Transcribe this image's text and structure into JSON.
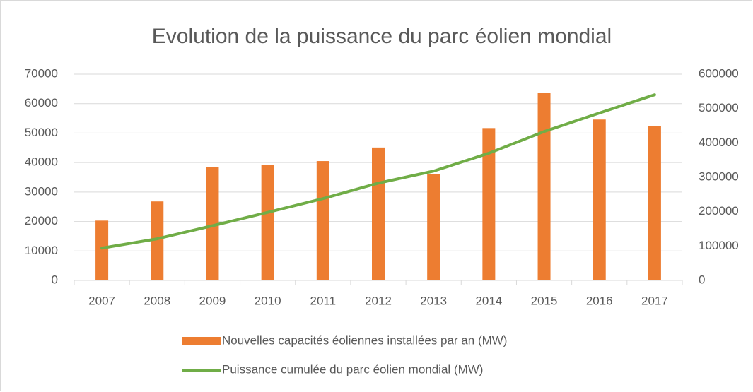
{
  "chart_data": {
    "type": "bar_line",
    "title": "Evolution de la puissance du parc éolien mondial",
    "categories": [
      "2007",
      "2008",
      "2009",
      "2010",
      "2011",
      "2012",
      "2013",
      "2014",
      "2015",
      "2016",
      "2017"
    ],
    "series": [
      {
        "name": "Nouvelles capacités éoliennes installées par an (MW)",
        "type": "bar",
        "color": "#ed7d31",
        "values": [
          20300,
          26800,
          38400,
          39100,
          40500,
          45100,
          36200,
          51700,
          63600,
          54600,
          52500
        ]
      },
      {
        "name": "Puissance cumulée du parc éolien mondial (MW)",
        "type": "line",
        "axis": "y2",
        "color": "#70ad47",
        "values": [
          94000,
          121000,
          159000,
          198000,
          238000,
          283000,
          318000,
          370000,
          433000,
          487000,
          540000
        ]
      }
    ],
    "ylim": [
      0,
      70000
    ],
    "yticks": [
      0,
      10000,
      20000,
      30000,
      40000,
      50000,
      60000,
      70000
    ],
    "y2lim": [
      0,
      600000
    ],
    "y2ticks": [
      0,
      100000,
      200000,
      300000,
      400000,
      500000,
      600000
    ],
    "grid": true,
    "legend": "bottom"
  }
}
